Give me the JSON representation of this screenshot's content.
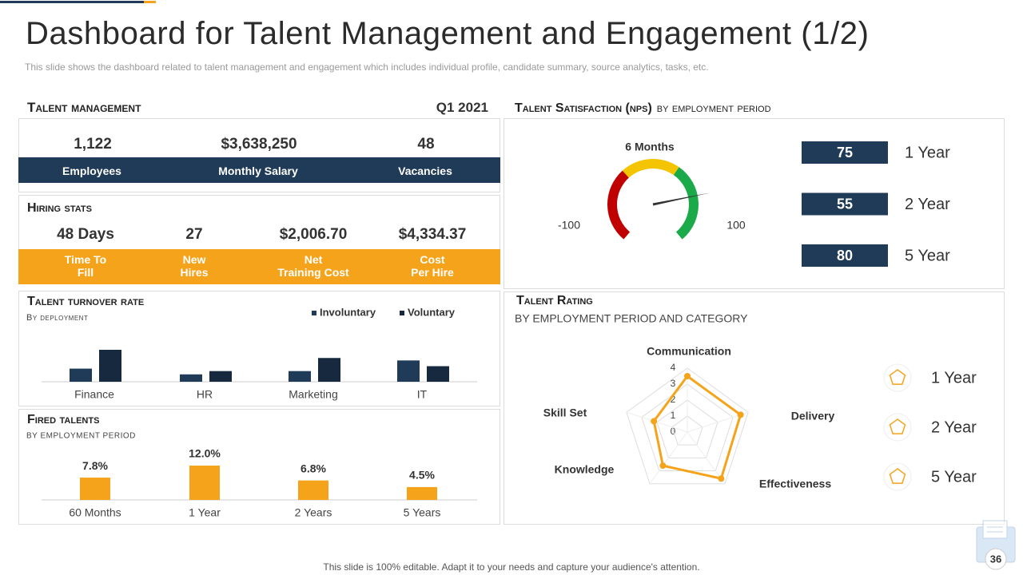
{
  "header": {
    "title": "Dashboard for Talent Management and Engagement (1/2)",
    "subtitle": "This slide shows the dashboard related to talent management and engagement which includes individual  profile, candidate summary, source analytics, tasks, etc."
  },
  "talent_management": {
    "title": "Talent management",
    "period": "Q1 2021",
    "kpis": [
      {
        "value": "1,122",
        "label": "Employees"
      },
      {
        "value": "$3,638,250",
        "label": "Monthly Salary"
      },
      {
        "value": "48",
        "label": "Vacancies"
      }
    ]
  },
  "hiring_stats": {
    "title": "Hiring stats",
    "items": [
      {
        "value": "48 Days",
        "label": "Time To\nFill"
      },
      {
        "value": "27",
        "label": "New\nHires"
      },
      {
        "value": "$2,006.70",
        "label": "Net\nTraining Cost"
      },
      {
        "value": "$4,334.37",
        "label": "Cost\nPer Hire"
      }
    ]
  },
  "chart_data": [
    {
      "type": "bar",
      "title": "Talent turnover rate",
      "subtitle": "By deployment",
      "categories": [
        "Finance",
        "HR",
        "Marketing",
        "IT"
      ],
      "series": [
        {
          "name": "Involuntary",
          "color": "#1f3b57",
          "values": [
            16,
            9,
            13,
            26
          ]
        },
        {
          "name": "Voluntary",
          "color": "#16293e",
          "values": [
            39,
            13,
            29,
            19
          ]
        }
      ]
    },
    {
      "type": "bar",
      "title": "Fired talents",
      "subtitle": "BY EMPLOYMENT  PERIOD",
      "categories": [
        "60 Months",
        "1 Year",
        "2 Years",
        "5 Years"
      ],
      "values": [
        7.8,
        12.0,
        6.8,
        4.5
      ],
      "value_labels": [
        "7.8%",
        "12.0%",
        "6.8%",
        "4.5%"
      ],
      "color": "#f5a31a"
    },
    {
      "type": "gauge",
      "title": "Talent Satisfaction (nps)",
      "subtitle": "by employment  period",
      "label": "6 Months",
      "value": 56,
      "xlim": [
        -100,
        100
      ],
      "xticks": [
        -100,
        100
      ],
      "bands": [
        {
          "from": -100,
          "to": -30,
          "color": "#c00000"
        },
        {
          "from": -30,
          "to": 25,
          "color": "#f5c400"
        },
        {
          "from": 25,
          "to": 100,
          "color": "#1aaa4a"
        }
      ],
      "periods": [
        {
          "label": "1 Year",
          "value": 75
        },
        {
          "label": "2 Year",
          "value": 55
        },
        {
          "label": "5 Year",
          "value": 80
        }
      ]
    },
    {
      "type": "radar",
      "title": "Talent Rating",
      "subtitle": "BY EMPLOYMENT  PERIOD AND CATEGORY",
      "axes": [
        "Communication",
        "Delivery",
        "Effectiveness",
        "Knowledge",
        "Skill Set"
      ],
      "rlim": [
        0,
        4
      ],
      "rticks": [
        0,
        1,
        2,
        3,
        4
      ],
      "series": [
        {
          "color": "#f5a31a",
          "values": [
            3.5,
            3.5,
            3.6,
            2.6,
            2.2
          ]
        }
      ],
      "legend": [
        "1 Year",
        "2 Year",
        "5 Year"
      ]
    }
  ],
  "footer": "This slide is 100% editable. Adapt it to your needs and capture your audience's attention.",
  "page_number": "36"
}
